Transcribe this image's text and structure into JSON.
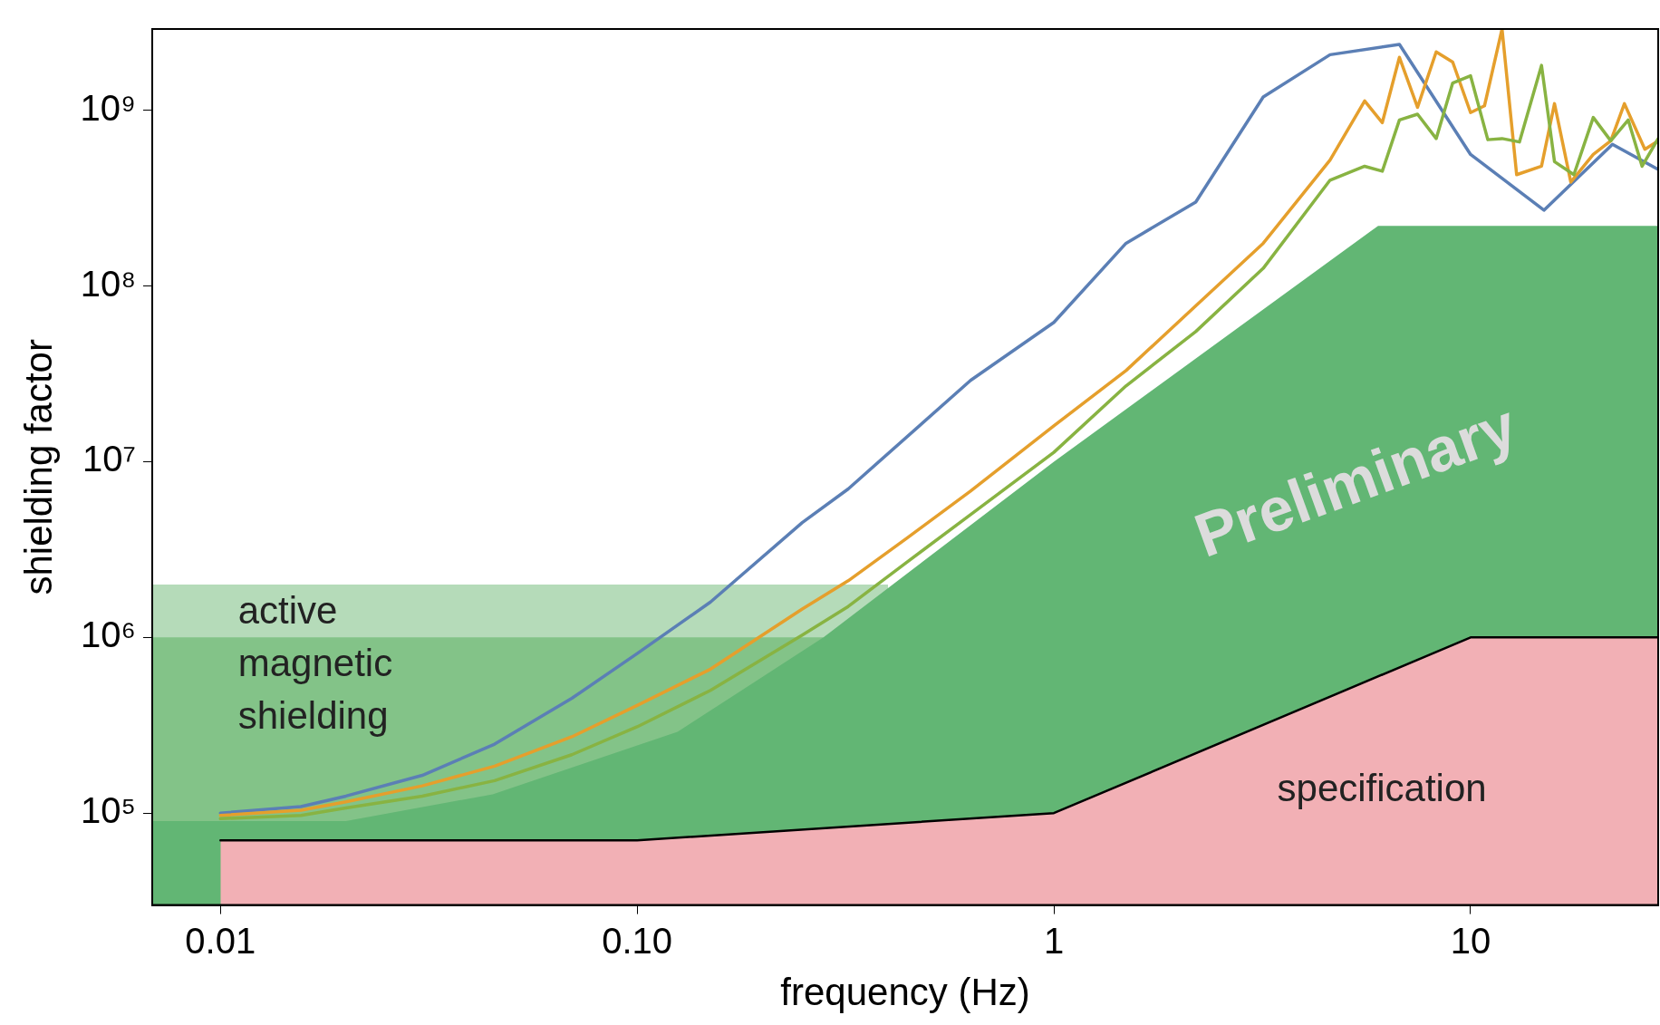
{
  "chart_data": {
    "type": "line",
    "xlabel": "frequency (Hz)",
    "ylabel": "shielding factor",
    "log": "xy",
    "grid": false,
    "legend": false,
    "marker": "none",
    "xlim": [
      0.00686,
      28.2
    ],
    "ylim": [
      30000,
      2900000000
    ],
    "xticks": [
      {
        "value": 0.01,
        "label": "0.01"
      },
      {
        "value": 0.1,
        "label": "0.10"
      },
      {
        "value": 1,
        "label": "1"
      },
      {
        "value": 10,
        "label": "10"
      }
    ],
    "yticks": [
      {
        "value": 100000,
        "label": "10⁵"
      },
      {
        "value": 1000000,
        "label": "10⁶"
      },
      {
        "value": 10000000,
        "label": "10⁷"
      },
      {
        "value": 100000000,
        "label": "10⁸"
      },
      {
        "value": 1000000000,
        "label": "10⁹"
      }
    ],
    "series": [
      {
        "type": "area",
        "color": "#b5dbb9",
        "x": [
          0.00686,
          0.4
        ],
        "values": [
          2000000,
          2000000
        ]
      },
      {
        "type": "area",
        "color": "#83c388",
        "x": [
          0.00686,
          0.28
        ],
        "values": [
          1000000,
          1000000
        ]
      },
      {
        "type": "area",
        "color": "#62b674",
        "x": [
          0.00686,
          0.02,
          0.045,
          0.125,
          0.28,
          1,
          6,
          28.2
        ],
        "values": [
          90000,
          90000,
          128000,
          290000,
          1000000,
          10000000,
          220000000,
          220000000
        ]
      },
      {
        "type": "area",
        "color": "#f2b0b5",
        "line_style": "solid",
        "x": [
          0.01,
          0.1,
          1,
          10,
          28.2
        ],
        "values": [
          70000,
          70000,
          100000,
          1000000,
          1000000
        ]
      },
      {
        "color": "#5b7fb5",
        "x": [
          0.01,
          0.0156,
          0.02,
          0.0305,
          0.0455,
          0.0697,
          0.1,
          0.15,
          0.249,
          0.321,
          0.631,
          1,
          1.49,
          2.19,
          3.18,
          4.6,
          6.75,
          10,
          15,
          21.9,
          28.2
        ],
        "values": [
          100000,
          109000,
          125000,
          164000,
          247000,
          450000,
          810000,
          1590000,
          4500000,
          7000000,
          29000000,
          62000000,
          175000000,
          300000000,
          1190000000,
          2070000000,
          2370000000,
          560000000,
          270000000,
          640000000,
          460000000
        ]
      },
      {
        "color": "#e59f2c",
        "x": [
          0.01,
          0.0156,
          0.02,
          0.0305,
          0.0455,
          0.0697,
          0.1,
          0.15,
          0.249,
          0.321,
          0.446,
          0.631,
          1,
          1.49,
          2.19,
          3.18,
          4.6,
          5.57,
          6.14,
          6.75,
          7.46,
          8.27,
          9.06,
          10,
          10.8,
          11.9,
          12.9,
          14.8,
          15.9,
          17.4,
          19.7,
          21.7,
          23.4,
          26.2,
          28.2
        ],
        "values": [
          97000,
          104000,
          116000,
          143000,
          185000,
          272000,
          410000,
          660000,
          1450000,
          2100000,
          3700000,
          6800000,
          16000000,
          33000000,
          77000000,
          175000000,
          520000000,
          1130000000,
          850000000,
          2000000000,
          1040000000,
          2150000000,
          1880000000,
          970000000,
          1060000000,
          2900000000,
          430000000,
          480000000,
          1090000000,
          390000000,
          560000000,
          670000000,
          1090000000,
          600000000,
          670000000
        ]
      },
      {
        "color": "#88b342",
        "x": [
          0.01,
          0.0156,
          0.02,
          0.0305,
          0.0455,
          0.0697,
          0.1,
          0.15,
          0.249,
          0.321,
          0.446,
          0.631,
          1,
          1.49,
          2.19,
          3.18,
          4.6,
          5.57,
          6.14,
          6.75,
          7.46,
          8.27,
          9.06,
          10,
          11,
          11.9,
          13.1,
          14.8,
          15.9,
          17.7,
          19.7,
          21.7,
          23.9,
          25.8,
          28.2
        ],
        "values": [
          93000,
          97000,
          107000,
          125000,
          153000,
          215000,
          310000,
          500000,
          1030000,
          1500000,
          2700000,
          5000000,
          11300000,
          27000000,
          55000000,
          126000000,
          400000000,
          480000000,
          450000000,
          880000000,
          950000000,
          690000000,
          1430000000,
          1570000000,
          680000000,
          690000000,
          660000000,
          1800000000,
          510000000,
          430000000,
          910000000,
          670000000,
          880000000,
          480000000,
          690000000
        ]
      }
    ],
    "annotations": [
      "active\nmagnetic\nshielding",
      "specification",
      "Preliminary"
    ]
  }
}
